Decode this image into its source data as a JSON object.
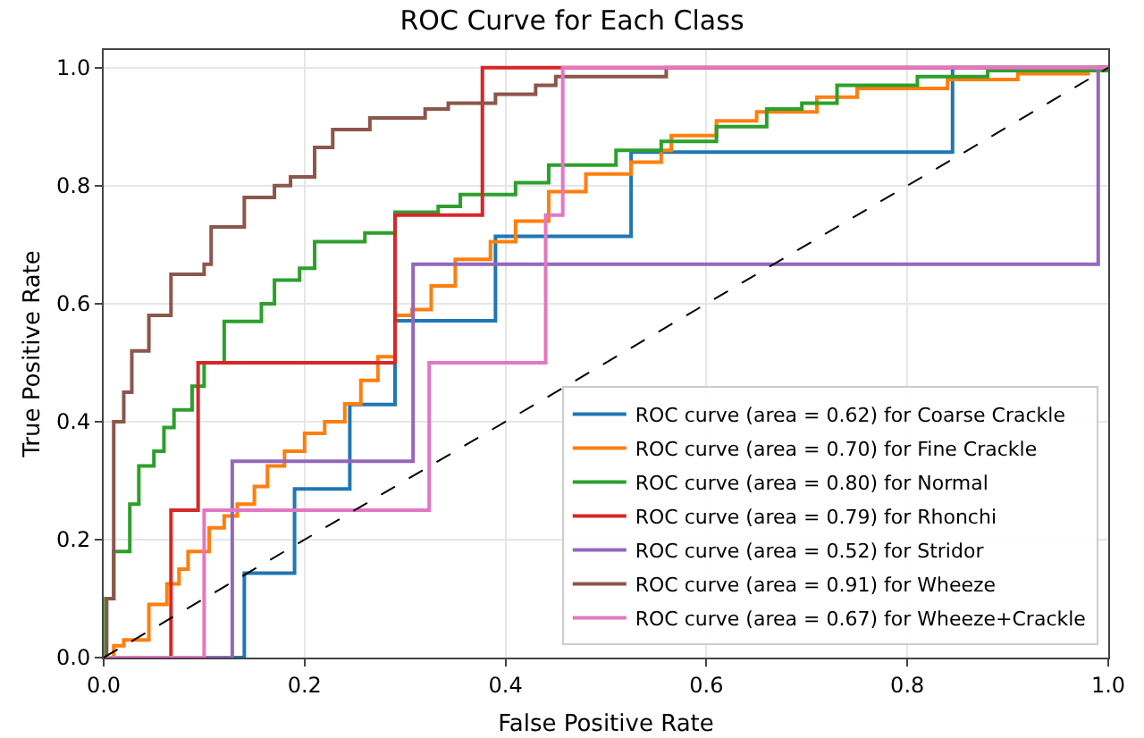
{
  "chart_data": {
    "type": "step",
    "title": "ROC Curve for Each Class",
    "xlabel": "False Positive Rate",
    "ylabel": "True Positive Rate",
    "xlim": [
      0,
      1
    ],
    "ylim": [
      0,
      1.03
    ],
    "xticks": [
      {
        "value": 0,
        "label": "0.0"
      },
      {
        "value": 0.2,
        "label": "0.2"
      },
      {
        "value": 0.4,
        "label": "0.4"
      },
      {
        "value": 0.6,
        "label": "0.6"
      },
      {
        "value": 0.8,
        "label": "0.8"
      },
      {
        "value": 1,
        "label": "1.0"
      }
    ],
    "yticks": [
      {
        "value": 0,
        "label": "0.0"
      },
      {
        "value": 0.2,
        "label": "0.2"
      },
      {
        "value": 0.4,
        "label": "0.4"
      },
      {
        "value": 0.6,
        "label": "0.6"
      },
      {
        "value": 0.8,
        "label": "0.8"
      },
      {
        "value": 1,
        "label": "1.0"
      }
    ],
    "grid": true,
    "legend": "bottom right",
    "line_style": "solid",
    "marker": "none",
    "series": [
      {
        "name": "ROC curve (area = 0.62) for Coarse Crackle",
        "color": "#1f77b4",
        "x": [
          0,
          0.14,
          0.14,
          0.19,
          0.19,
          0.245,
          0.245,
          0.29,
          0.29,
          0.39,
          0.39,
          0.525,
          0.525,
          0.845,
          0.845,
          1
        ],
        "values": [
          0,
          0,
          0.143,
          0.143,
          0.286,
          0.286,
          0.429,
          0.429,
          0.571,
          0.571,
          0.714,
          0.714,
          0.857,
          0.857,
          1,
          1
        ]
      },
      {
        "name": "ROC curve (area = 0.70) for Fine Crackle",
        "color": "#ff7f0e",
        "x": [
          0,
          0.01,
          0.02,
          0.045,
          0.063,
          0.075,
          0.084,
          0.105,
          0.12,
          0.133,
          0.15,
          0.163,
          0.18,
          0.2,
          0.22,
          0.24,
          0.256,
          0.273,
          0.29,
          0.307,
          0.326,
          0.35,
          0.385,
          0.41,
          0.443,
          0.48,
          0.525,
          0.555,
          0.565,
          0.61,
          0.65,
          0.71,
          0.75,
          0.84,
          0.91,
          0.98,
          1
        ],
        "values": [
          0,
          0.02,
          0.03,
          0.09,
          0.125,
          0.15,
          0.18,
          0.22,
          0.24,
          0.26,
          0.29,
          0.325,
          0.35,
          0.38,
          0.4,
          0.43,
          0.47,
          0.51,
          0.58,
          0.59,
          0.63,
          0.675,
          0.705,
          0.74,
          0.79,
          0.82,
          0.84,
          0.86,
          0.885,
          0.91,
          0.925,
          0.95,
          0.965,
          0.98,
          0.99,
          1,
          1
        ]
      },
      {
        "name": "ROC curve (area = 0.80) for Normal",
        "color": "#2ca02c",
        "x": [
          0,
          0.002,
          0.01,
          0.026,
          0.035,
          0.05,
          0.06,
          0.07,
          0.088,
          0.1,
          0.12,
          0.157,
          0.17,
          0.195,
          0.21,
          0.26,
          0.29,
          0.333,
          0.355,
          0.41,
          0.443,
          0.51,
          0.555,
          0.61,
          0.66,
          0.695,
          0.73,
          0.81,
          0.88,
          1
        ],
        "values": [
          0,
          0.1,
          0.18,
          0.26,
          0.325,
          0.35,
          0.39,
          0.42,
          0.46,
          0.5,
          0.57,
          0.6,
          0.64,
          0.66,
          0.705,
          0.72,
          0.755,
          0.765,
          0.785,
          0.805,
          0.835,
          0.86,
          0.875,
          0.9,
          0.93,
          0.94,
          0.97,
          0.985,
          0.995,
          1
        ]
      },
      {
        "name": "ROC curve (area = 0.79) for Rhonchi",
        "color": "#d62728",
        "x": [
          0,
          0.067,
          0.067,
          0.094,
          0.094,
          0.29,
          0.29,
          0.377,
          0.377,
          1
        ],
        "values": [
          0,
          0,
          0.25,
          0.25,
          0.5,
          0.5,
          0.75,
          0.75,
          1,
          1
        ]
      },
      {
        "name": "ROC curve (area = 0.52) for Stridor",
        "color": "#9467bd",
        "x": [
          0,
          0.128,
          0.128,
          0.308,
          0.308,
          0.99,
          0.99,
          1
        ],
        "values": [
          0,
          0,
          0.333,
          0.333,
          0.667,
          0.667,
          1,
          1
        ]
      },
      {
        "name": "ROC curve (area = 0.91) for Wheeze",
        "color": "#8c564b",
        "x": [
          0,
          0.003,
          0.01,
          0.02,
          0.028,
          0.045,
          0.067,
          0.1,
          0.107,
          0.14,
          0.17,
          0.186,
          0.21,
          0.228,
          0.265,
          0.32,
          0.343,
          0.39,
          0.43,
          0.45,
          0.56,
          0.56,
          1
        ],
        "values": [
          0,
          0.1,
          0.4,
          0.45,
          0.52,
          0.58,
          0.65,
          0.667,
          0.73,
          0.78,
          0.8,
          0.815,
          0.865,
          0.895,
          0.915,
          0.93,
          0.94,
          0.955,
          0.97,
          0.985,
          0.99,
          1,
          1
        ]
      },
      {
        "name": "ROC curve (area = 0.67) for Wheeze+Crackle",
        "color": "#e377c2",
        "x": [
          0,
          0.1,
          0.1,
          0.324,
          0.324,
          0.44,
          0.44,
          0.457,
          0.457,
          1
        ],
        "values": [
          0,
          0,
          0.25,
          0.25,
          0.5,
          0.5,
          0.75,
          0.75,
          1,
          1
        ]
      },
      {
        "type": "line",
        "color": "#000000",
        "line_style": "dashed",
        "x": [
          0,
          1
        ],
        "values": [
          0,
          1
        ]
      }
    ]
  }
}
